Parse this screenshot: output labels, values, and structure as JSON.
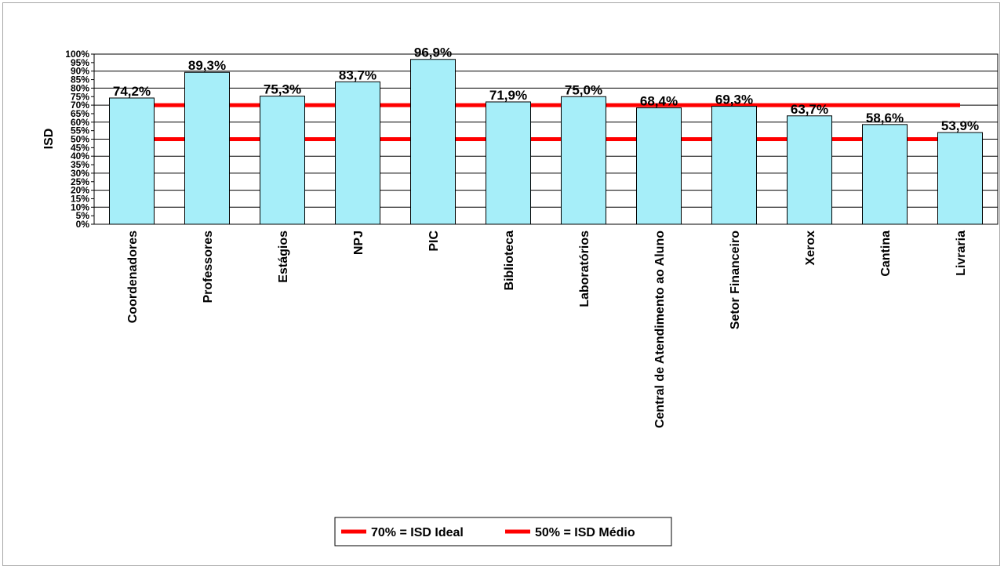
{
  "chart_data": {
    "type": "bar",
    "ylabel": "ISD",
    "xlabel": "",
    "ylim": [
      0,
      100
    ],
    "yticks": [
      "0%",
      "5%",
      "10%",
      "15%",
      "20%",
      "25%",
      "30%",
      "35%",
      "40%",
      "45%",
      "50%",
      "55%",
      "60%",
      "65%",
      "70%",
      "75%",
      "80%",
      "85%",
      "90%",
      "95%",
      "100%"
    ],
    "grid": "major lines every 10%",
    "categories": [
      "Coordenadores",
      "Professores",
      "Estágios",
      "NPJ",
      "PIC",
      "Biblioteca",
      "Laboratórios",
      "Central de Atendimento ao Aluno",
      "Setor Financeiro",
      "Xerox",
      "Cantina",
      "Livraria"
    ],
    "values": [
      74.2,
      89.3,
      75.3,
      83.7,
      96.9,
      71.9,
      75.0,
      68.4,
      69.3,
      63.7,
      58.6,
      53.9
    ],
    "data_labels": [
      "74,2%",
      "89,3%",
      "75,3%",
      "83,7%",
      "96,9%",
      "71,9%",
      "75,0%",
      "68,4%",
      "69,3%",
      "63,7%",
      "58,6%",
      "53,9%"
    ],
    "bar_color": "#a6eef9",
    "reference_lines": [
      {
        "name": "70% = ISD Ideal",
        "value": 70,
        "color": "#ff0000"
      },
      {
        "name": "50% = ISD Médio",
        "value": 50,
        "color": "#ff0000"
      }
    ],
    "legend_position": "bottom"
  }
}
